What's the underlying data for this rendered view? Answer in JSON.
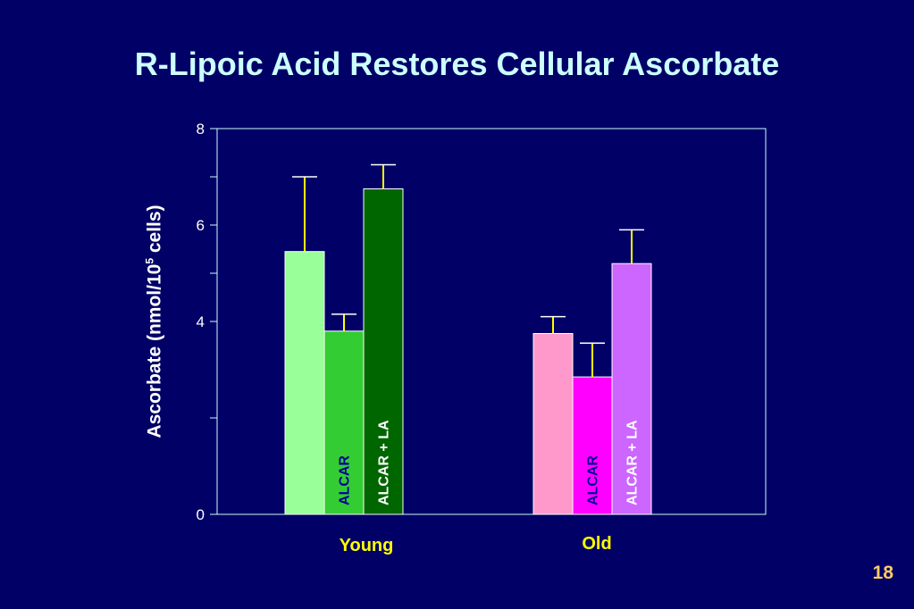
{
  "slide": {
    "title": "R-Lipoic Acid Restores Cellular Ascorbate",
    "number": "18"
  },
  "chart_data": {
    "type": "bar",
    "title": "R-Lipoic Acid Restores Cellular Ascorbate",
    "ylabel_main": "Ascorbate (nmol/10",
    "ylabel_sup": "5",
    "ylabel_end": " cells)",
    "ylim": [
      0,
      8
    ],
    "yticks_labeled": [
      "0",
      "4",
      "6",
      "8"
    ],
    "yticks_values": [
      0,
      4,
      6,
      8
    ],
    "yticks_minor": [
      2,
      5,
      7
    ],
    "categories": [
      "Young",
      "Old"
    ],
    "bar_labels": [
      "",
      "ALCAR",
      "ALCAR + LA"
    ],
    "series": [
      {
        "values": [
          5.45,
          3.75
        ],
        "errors": [
          1.55,
          0.35
        ],
        "colors": [
          "#99ff99",
          "#ff99cc"
        ],
        "label_color": "#000099"
      },
      {
        "values": [
          3.8,
          2.85
        ],
        "errors": [
          0.35,
          0.7
        ],
        "colors": [
          "#33cc33",
          "#ff00ff"
        ],
        "label_color": "#000099"
      },
      {
        "values": [
          6.75,
          5.2
        ],
        "errors": [
          0.5,
          0.7
        ],
        "colors": [
          "#006600",
          "#cc66ff"
        ],
        "label_color": "#ffffff"
      }
    ],
    "error_bar_color": "#ffff00",
    "axis_color": "#ccffff",
    "grid": false
  }
}
